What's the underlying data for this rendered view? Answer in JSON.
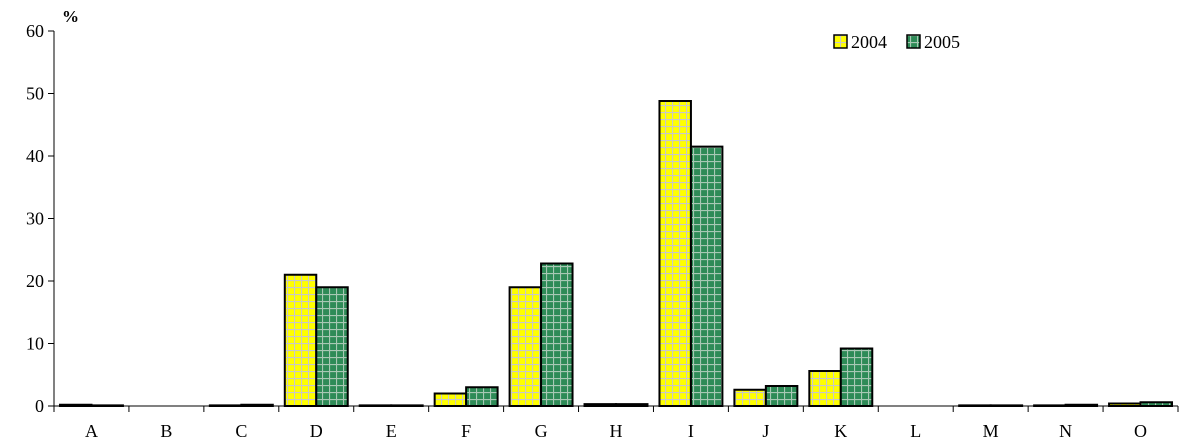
{
  "chart_data": {
    "type": "bar",
    "title": "",
    "xlabel": "",
    "ylabel": "%",
    "ylim": [
      0,
      60
    ],
    "yticks": [
      0,
      10,
      20,
      30,
      40,
      50,
      60
    ],
    "grid": false,
    "legend_position": "top-right",
    "categories": [
      "A",
      "B",
      "C",
      "D",
      "E",
      "F",
      "G",
      "H",
      "I",
      "J",
      "K",
      "L",
      "M",
      "N",
      "O"
    ],
    "series": [
      {
        "name": "2004",
        "color": "#ffff00",
        "grid_color": "#c8c8c8",
        "values": [
          0.2,
          0,
          0.1,
          21,
          0.1,
          2,
          19,
          0.3,
          48.8,
          2.6,
          5.6,
          0,
          0.1,
          0.1,
          0.4
        ]
      },
      {
        "name": "2005",
        "color": "#2e8b57",
        "grid_color": "#a8c8b4",
        "values": [
          0.1,
          0,
          0.2,
          19,
          0.1,
          3,
          22.8,
          0.3,
          41.5,
          3.2,
          9.2,
          0,
          0.1,
          0.2,
          0.6
        ]
      }
    ]
  }
}
